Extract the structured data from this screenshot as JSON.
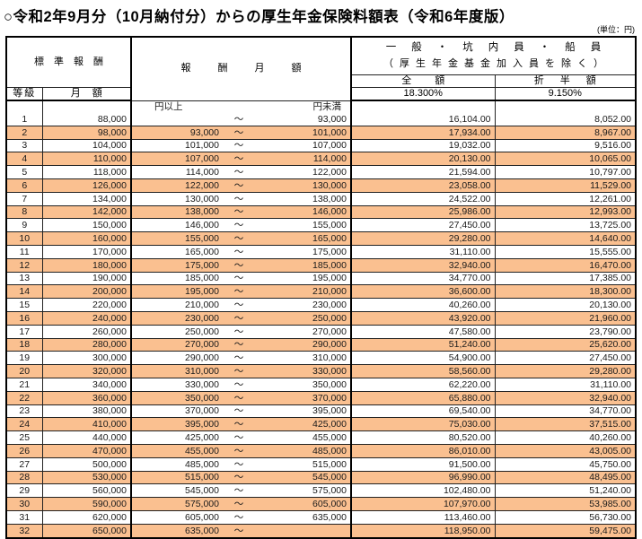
{
  "page": {
    "title": "○令和2年9月分（10月納付分）からの厚生年金保険料額表（令和6年度版）",
    "unit_note": "(単位：円)"
  },
  "table": {
    "colors": {
      "stripe_orange": "#FAC090",
      "border": "#000000"
    },
    "header": {
      "standard_remuneration": "標準報酬",
      "grade": "等級",
      "monthly_amount": "月額",
      "remuneration_monthly_amount": "報酬月額",
      "category_line1": "一般・坑内員・船員",
      "category_line2": "（厚生年金基金加入員を除く）",
      "full_amount_label": "全額",
      "full_amount_rate": "18.300%",
      "half_amount_label": "折半額",
      "half_amount_rate": "9.150%",
      "yen_or_more": "円以上",
      "yen_less_than": "円未満",
      "tilde": "～"
    },
    "rows": [
      {
        "grade": "1",
        "monthly": "88,000",
        "from": "",
        "to": "93,000",
        "full": "16,104.00",
        "half": "8,052.00"
      },
      {
        "grade": "2",
        "monthly": "98,000",
        "from": "93,000",
        "to": "101,000",
        "full": "17,934.00",
        "half": "8,967.00"
      },
      {
        "grade": "3",
        "monthly": "104,000",
        "from": "101,000",
        "to": "107,000",
        "full": "19,032.00",
        "half": "9,516.00"
      },
      {
        "grade": "4",
        "monthly": "110,000",
        "from": "107,000",
        "to": "114,000",
        "full": "20,130.00",
        "half": "10,065.00"
      },
      {
        "grade": "5",
        "monthly": "118,000",
        "from": "114,000",
        "to": "122,000",
        "full": "21,594.00",
        "half": "10,797.00"
      },
      {
        "grade": "6",
        "monthly": "126,000",
        "from": "122,000",
        "to": "130,000",
        "full": "23,058.00",
        "half": "11,529.00"
      },
      {
        "grade": "7",
        "monthly": "134,000",
        "from": "130,000",
        "to": "138,000",
        "full": "24,522.00",
        "half": "12,261.00"
      },
      {
        "grade": "8",
        "monthly": "142,000",
        "from": "138,000",
        "to": "146,000",
        "full": "25,986.00",
        "half": "12,993.00"
      },
      {
        "grade": "9",
        "monthly": "150,000",
        "from": "146,000",
        "to": "155,000",
        "full": "27,450.00",
        "half": "13,725.00"
      },
      {
        "grade": "10",
        "monthly": "160,000",
        "from": "155,000",
        "to": "165,000",
        "full": "29,280.00",
        "half": "14,640.00"
      },
      {
        "grade": "11",
        "monthly": "170,000",
        "from": "165,000",
        "to": "175,000",
        "full": "31,110.00",
        "half": "15,555.00"
      },
      {
        "grade": "12",
        "monthly": "180,000",
        "from": "175,000",
        "to": "185,000",
        "full": "32,940.00",
        "half": "16,470.00"
      },
      {
        "grade": "13",
        "monthly": "190,000",
        "from": "185,000",
        "to": "195,000",
        "full": "34,770.00",
        "half": "17,385.00"
      },
      {
        "grade": "14",
        "monthly": "200,000",
        "from": "195,000",
        "to": "210,000",
        "full": "36,600.00",
        "half": "18,300.00"
      },
      {
        "grade": "15",
        "monthly": "220,000",
        "from": "210,000",
        "to": "230,000",
        "full": "40,260.00",
        "half": "20,130.00"
      },
      {
        "grade": "16",
        "monthly": "240,000",
        "from": "230,000",
        "to": "250,000",
        "full": "43,920.00",
        "half": "21,960.00"
      },
      {
        "grade": "17",
        "monthly": "260,000",
        "from": "250,000",
        "to": "270,000",
        "full": "47,580.00",
        "half": "23,790.00"
      },
      {
        "grade": "18",
        "monthly": "280,000",
        "from": "270,000",
        "to": "290,000",
        "full": "51,240.00",
        "half": "25,620.00"
      },
      {
        "grade": "19",
        "monthly": "300,000",
        "from": "290,000",
        "to": "310,000",
        "full": "54,900.00",
        "half": "27,450.00"
      },
      {
        "grade": "20",
        "monthly": "320,000",
        "from": "310,000",
        "to": "330,000",
        "full": "58,560.00",
        "half": "29,280.00"
      },
      {
        "grade": "21",
        "monthly": "340,000",
        "from": "330,000",
        "to": "350,000",
        "full": "62,220.00",
        "half": "31,110.00"
      },
      {
        "grade": "22",
        "monthly": "360,000",
        "from": "350,000",
        "to": "370,000",
        "full": "65,880.00",
        "half": "32,940.00"
      },
      {
        "grade": "23",
        "monthly": "380,000",
        "from": "370,000",
        "to": "395,000",
        "full": "69,540.00",
        "half": "34,770.00"
      },
      {
        "grade": "24",
        "monthly": "410,000",
        "from": "395,000",
        "to": "425,000",
        "full": "75,030.00",
        "half": "37,515.00"
      },
      {
        "grade": "25",
        "monthly": "440,000",
        "from": "425,000",
        "to": "455,000",
        "full": "80,520.00",
        "half": "40,260.00"
      },
      {
        "grade": "26",
        "monthly": "470,000",
        "from": "455,000",
        "to": "485,000",
        "full": "86,010.00",
        "half": "43,005.00"
      },
      {
        "grade": "27",
        "monthly": "500,000",
        "from": "485,000",
        "to": "515,000",
        "full": "91,500.00",
        "half": "45,750.00"
      },
      {
        "grade": "28",
        "monthly": "530,000",
        "from": "515,000",
        "to": "545,000",
        "full": "96,990.00",
        "half": "48,495.00"
      },
      {
        "grade": "29",
        "monthly": "560,000",
        "from": "545,000",
        "to": "575,000",
        "full": "102,480.00",
        "half": "51,240.00"
      },
      {
        "grade": "30",
        "monthly": "590,000",
        "from": "575,000",
        "to": "605,000",
        "full": "107,970.00",
        "half": "53,985.00"
      },
      {
        "grade": "31",
        "monthly": "620,000",
        "from": "605,000",
        "to": "635,000",
        "full": "113,460.00",
        "half": "56,730.00"
      },
      {
        "grade": "32",
        "monthly": "650,000",
        "from": "635,000",
        "to": "",
        "full": "118,950.00",
        "half": "59,475.00"
      }
    ]
  }
}
